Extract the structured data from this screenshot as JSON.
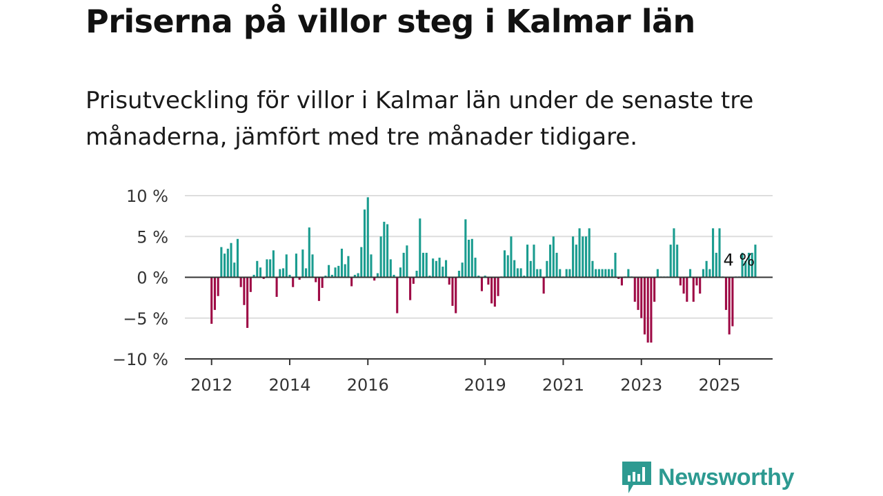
{
  "header": {
    "title": "Priserna på villor steg i Kalmar län",
    "subtitle": "Prisutveckling för villor i Kalmar län under de senaste tre månaderna, jämfört med tre månader tidigare."
  },
  "brand": {
    "name": "Newsworthy",
    "icon": "newsworthy-logo-icon",
    "color": "#2d9a91"
  },
  "chart_data": {
    "type": "bar",
    "title": "Priserna på villor steg i Kalmar län",
    "subtitle": "Prisutveckling för villor i Kalmar län under de senaste tre månaderna, jämfört med tre månader tidigare.",
    "unit": "%",
    "x_start": "2012-01",
    "frequency": "monthly",
    "ylim": [
      -10,
      10
    ],
    "y_ticks": [
      10,
      5,
      0,
      -5,
      -10
    ],
    "y_tick_labels": [
      "10 %",
      "5 %",
      "0 %",
      "−5 %",
      "−10 %"
    ],
    "x_tick_labels": [
      {
        "label": "2012",
        "month": "2012-01"
      },
      {
        "label": "2014",
        "month": "2014-01"
      },
      {
        "label": "2016",
        "month": "2016-01"
      },
      {
        "label": "2019",
        "month": "2019-01"
      },
      {
        "label": "2021",
        "month": "2021-01"
      },
      {
        "label": "2023",
        "month": "2023-01"
      },
      {
        "label": "2025",
        "month": "2025-01"
      }
    ],
    "grid": true,
    "colors": {
      "positive": "#1a9c8f",
      "negative": "#9e0a45",
      "grid": "#dddddd",
      "zero_line": "#333333"
    },
    "annotation": {
      "text": "4 %",
      "month": "2025-07"
    },
    "values": [
      -5.7,
      -4,
      -2.3,
      3.7,
      2.9,
      3.5,
      4.2,
      1.8,
      4.7,
      -1.2,
      -3.4,
      -6.2,
      -1.8,
      0.3,
      2,
      1.2,
      -0.2,
      2.2,
      2.2,
      3.3,
      -2.4,
      1,
      1.1,
      2.8,
      0.3,
      -1.2,
      2.9,
      -0.3,
      3.4,
      1.1,
      6.1,
      2.8,
      -0.6,
      -2.9,
      -1.3,
      0.2,
      1.5,
      0.3,
      1.2,
      1.4,
      3.5,
      1.6,
      2.6,
      -1.1,
      0.3,
      0.5,
      3.7,
      8.3,
      9.8,
      2.8,
      -0.4,
      0.5,
      5,
      6.8,
      6.5,
      2.2,
      0.3,
      -4.4,
      1.2,
      3,
      3.9,
      -2.8,
      -0.8,
      0.8,
      7.2,
      3,
      3,
      0.2,
      2.3,
      2,
      2.4,
      1.3,
      2.1,
      -0.9,
      -3.5,
      -4.4,
      0.8,
      1.8,
      7.1,
      4.6,
      4.7,
      2.4,
      0.2,
      -1.7,
      0.2,
      -0.9,
      -3.2,
      -3.6,
      -2.3,
      0.1,
      3.3,
      2.7,
      5,
      2.1,
      1.1,
      1.1,
      0.2,
      4,
      2,
      4,
      1,
      1,
      -2,
      2,
      4,
      5,
      3,
      1,
      0.1,
      1,
      1,
      5,
      4,
      6,
      5,
      5,
      6,
      2,
      1,
      1,
      1,
      1,
      1,
      1,
      3,
      -0.2,
      -1,
      0.1,
      1,
      0.1,
      -3,
      -4,
      -5,
      -7,
      -8,
      -8,
      -3,
      1,
      0.1,
      0.1,
      0.1,
      4,
      6,
      4,
      -1,
      -2,
      -3,
      1,
      -3,
      -1,
      -2,
      1,
      2,
      1,
      6,
      3,
      6,
      0.1,
      -4,
      -7,
      -6,
      0.1,
      0.1,
      3,
      2,
      3,
      3,
      4
    ]
  }
}
